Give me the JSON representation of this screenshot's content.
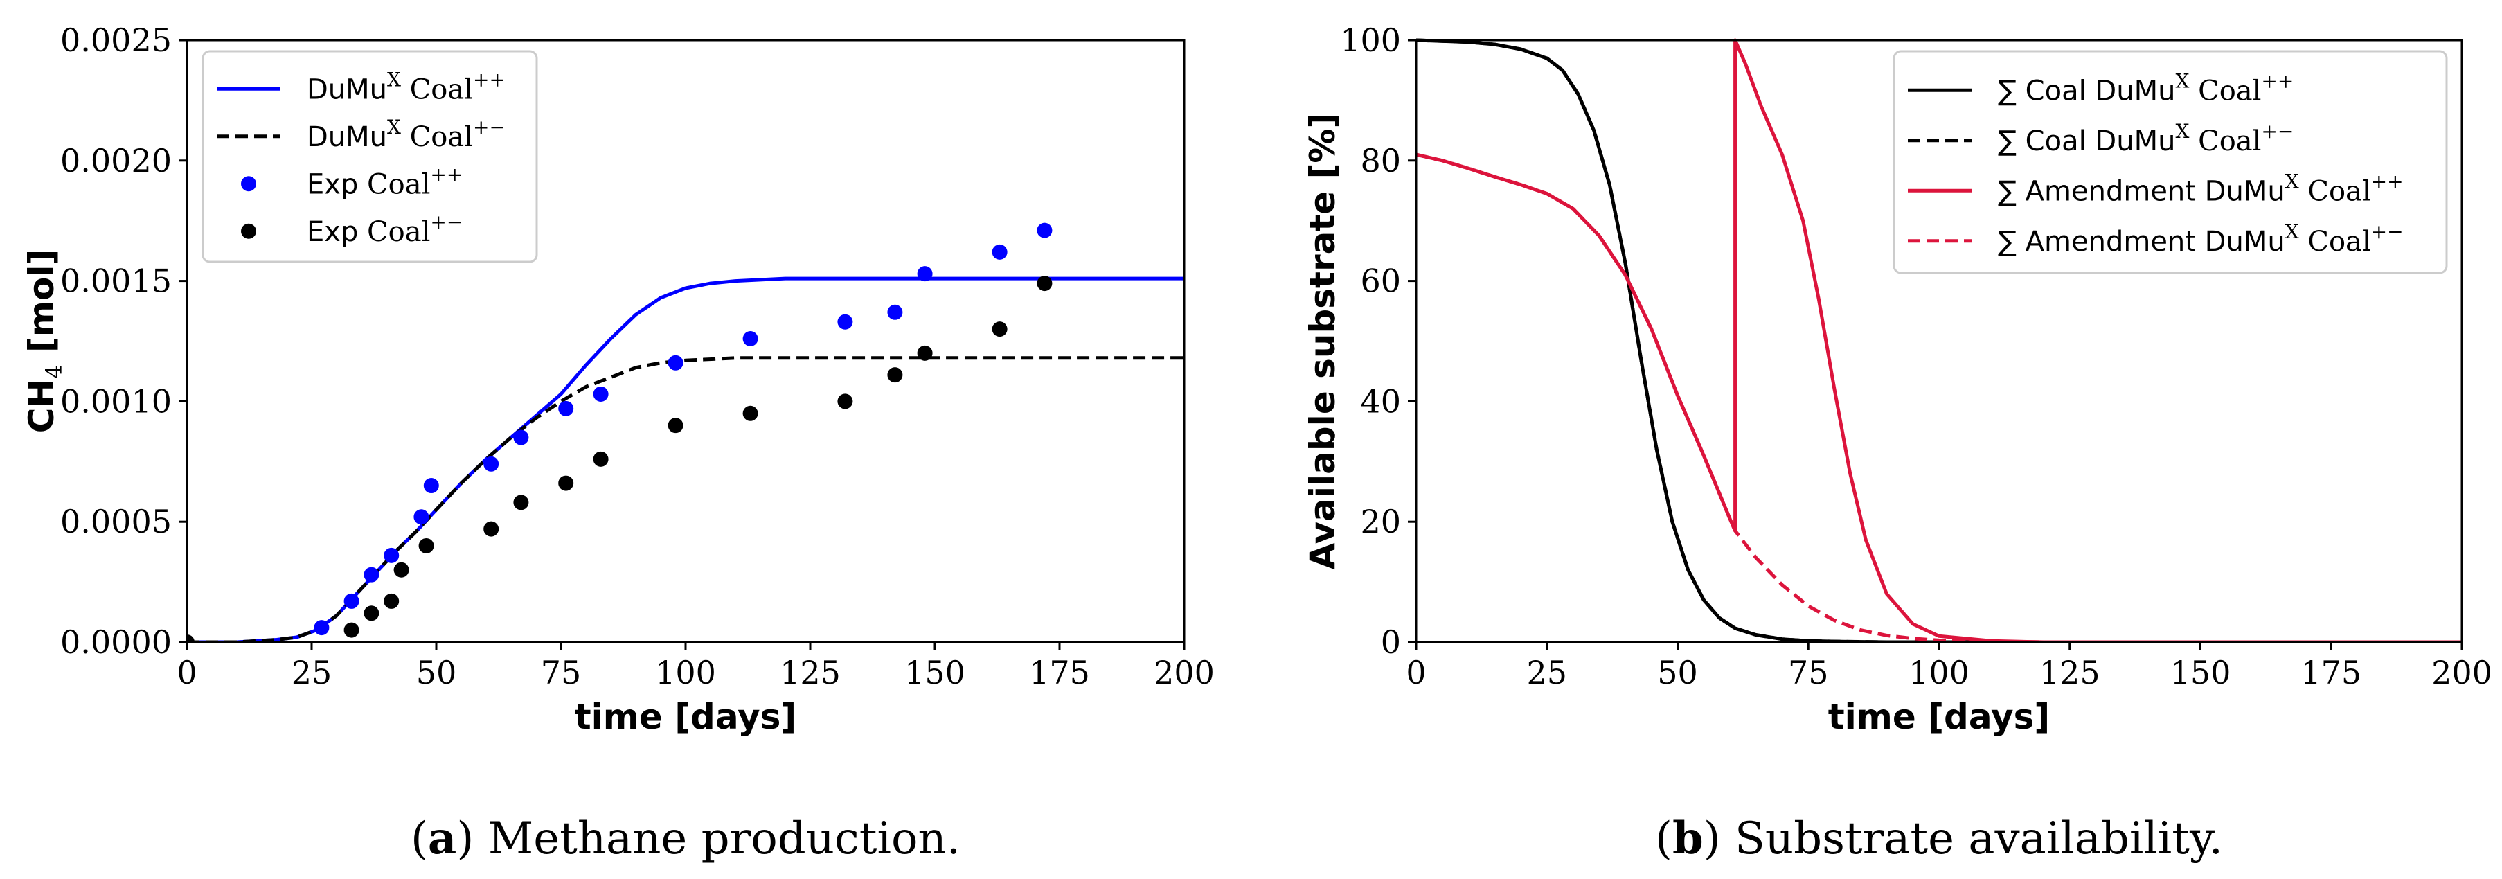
{
  "chart_data": [
    {
      "id": "a",
      "type": "line",
      "ylabel_main": "CH",
      "ylabel_sub": "4",
      "ylabel_unit": " [mol]",
      "xlabel": "time [days]",
      "xlim": [
        0,
        200
      ],
      "ylim": [
        0,
        0.0025
      ],
      "xticks": [
        0,
        25,
        50,
        75,
        100,
        125,
        150,
        175,
        200
      ],
      "xtick_labels": [
        "0",
        "25",
        "50",
        "75",
        "100",
        "125",
        "150",
        "175",
        "200"
      ],
      "yticks": [
        0,
        0.0005,
        0.001,
        0.0015,
        0.002,
        0.0025
      ],
      "ytick_labels": [
        "0.0000",
        "0.0005",
        "0.0010",
        "0.0015",
        "0.0020",
        "0.0025"
      ],
      "caption_letter": "a",
      "caption_text": " Methane production.",
      "legend_position": "top-left",
      "series": [
        {
          "name": "DuMuX Coal++",
          "label_main": "DuMu",
          "label_sup1": "X",
          "label_rest": " Coal",
          "label_sup2": "++",
          "kind": "line",
          "color": "#0000ff",
          "dash": false,
          "x": [
            0,
            10,
            18,
            22,
            26,
            30,
            34,
            38,
            42,
            46,
            50,
            55,
            60,
            65,
            70,
            75,
            80,
            85,
            90,
            95,
            100,
            105,
            110,
            120,
            130,
            150,
            175,
            200
          ],
          "y": [
            0,
            0,
            1e-05,
            2e-05,
            5e-05,
            0.00011,
            0.0002,
            0.00029,
            0.00038,
            0.00046,
            0.00055,
            0.00066,
            0.00076,
            0.00085,
            0.00094,
            0.00103,
            0.00115,
            0.00126,
            0.00136,
            0.00143,
            0.00147,
            0.00149,
            0.0015,
            0.00151,
            0.00151,
            0.00151,
            0.00151,
            0.00151
          ]
        },
        {
          "name": "DuMuX Coal+-",
          "label_main": "DuMu",
          "label_sup1": "X",
          "label_rest": " Coal",
          "label_sup2": "+−",
          "kind": "line",
          "color": "#000000",
          "dash": true,
          "x": [
            0,
            10,
            18,
            22,
            26,
            30,
            34,
            38,
            42,
            46,
            50,
            55,
            60,
            65,
            70,
            75,
            80,
            85,
            90,
            95,
            100,
            110,
            120,
            130,
            150,
            175,
            200
          ],
          "y": [
            0,
            0,
            1e-05,
            2e-05,
            5e-05,
            0.00011,
            0.0002,
            0.00029,
            0.00038,
            0.00046,
            0.00055,
            0.00066,
            0.00076,
            0.00085,
            0.00093,
            0.001,
            0.00106,
            0.0011,
            0.00114,
            0.00116,
            0.00117,
            0.00118,
            0.00118,
            0.00118,
            0.00118,
            0.00118,
            0.00118
          ]
        },
        {
          "name": "Exp Coal++",
          "label_main": "Exp",
          "label_sup1": "",
          "label_rest": " Coal",
          "label_sup2": "++",
          "kind": "scatter",
          "color": "#0000ff",
          "x": [
            27,
            33,
            37,
            41,
            47,
            49,
            61,
            67,
            76,
            83,
            98,
            113,
            132,
            142,
            148,
            163,
            172
          ],
          "y": [
            6e-05,
            0.00017,
            0.00028,
            0.00036,
            0.00052,
            0.00065,
            0.00074,
            0.00085,
            0.00097,
            0.00103,
            0.00116,
            0.00126,
            0.00133,
            0.00137,
            0.00153,
            0.00162,
            0.00171
          ]
        },
        {
          "name": "Exp Coal+-",
          "label_main": "Exp",
          "label_sup1": "",
          "label_rest": " Coal",
          "label_sup2": "+−",
          "kind": "scatter",
          "color": "#000000",
          "x": [
            0,
            33,
            37,
            41,
            43,
            48,
            61,
            67,
            76,
            83,
            98,
            113,
            132,
            142,
            148,
            163,
            172
          ],
          "y": [
            0,
            5e-05,
            0.00012,
            0.00017,
            0.0003,
            0.0004,
            0.00047,
            0.00058,
            0.00066,
            0.00076,
            0.0009,
            0.00095,
            0.001,
            0.00111,
            0.0012,
            0.0013,
            0.00149
          ]
        }
      ]
    },
    {
      "id": "b",
      "type": "line",
      "ylabel": "Available substrate [%]",
      "xlabel": "time [days]",
      "xlim": [
        0,
        200
      ],
      "ylim": [
        0,
        100
      ],
      "xticks": [
        0,
        25,
        50,
        75,
        100,
        125,
        150,
        175,
        200
      ],
      "xtick_labels": [
        "0",
        "25",
        "50",
        "75",
        "100",
        "125",
        "150",
        "175",
        "200"
      ],
      "yticks": [
        0,
        20,
        40,
        60,
        80,
        100
      ],
      "ytick_labels": [
        "0",
        "20",
        "40",
        "60",
        "80",
        "100"
      ],
      "caption_letter": "b",
      "caption_text": " Substrate availability.",
      "legend_position": "top-right",
      "series": [
        {
          "name": "∑ Coal DuMuX Coal++",
          "label_main": "∑ Coal DuMu",
          "label_sup1": "X",
          "label_rest": " Coal",
          "label_sup2": "++",
          "kind": "line",
          "color": "#000000",
          "dash": false,
          "x": [
            0,
            10,
            15,
            20,
            25,
            28,
            31,
            34,
            37,
            40,
            43,
            46,
            49,
            52,
            55,
            58,
            61,
            65,
            70,
            75,
            80,
            90,
            100,
            120,
            200
          ],
          "y": [
            100,
            99.7,
            99.3,
            98.5,
            97,
            95,
            91,
            85,
            76,
            63,
            47,
            32,
            20,
            12,
            7,
            4,
            2.3,
            1.2,
            0.5,
            0.2,
            0.1,
            0,
            0,
            0,
            0
          ]
        },
        {
          "name": "∑ Coal DuMuX Coal+-",
          "label_main": "∑ Coal DuMu",
          "label_sup1": "X",
          "label_rest": " Coal",
          "label_sup2": "+−",
          "kind": "line",
          "color": "#000000",
          "dash": true,
          "x": [
            0,
            10,
            15,
            20,
            25,
            28,
            31,
            34,
            37,
            40,
            43,
            46,
            49,
            52,
            55,
            58,
            61,
            65,
            70,
            75,
            80,
            90,
            100,
            120,
            200
          ],
          "y": [
            100,
            99.7,
            99.3,
            98.5,
            97,
            95,
            91,
            85,
            76,
            63,
            47,
            32,
            20,
            12,
            7,
            4,
            2.3,
            1.2,
            0.5,
            0.2,
            0.1,
            0,
            0,
            0,
            0
          ]
        },
        {
          "name": "∑ Amendment DuMuX Coal++",
          "label_main": "∑ Amendment DuMu",
          "label_sup1": "X",
          "label_rest": " Coal",
          "label_sup2": "++",
          "kind": "line",
          "color": "#dc143c",
          "dash": false,
          "x": [
            0,
            5,
            10,
            15,
            20,
            25,
            30,
            35,
            40,
            45,
            50,
            55,
            60,
            61,
            61,
            63,
            66,
            70,
            74,
            77,
            80,
            83,
            86,
            90,
            95,
            100,
            110,
            120,
            200
          ],
          "y": [
            81,
            80,
            78.7,
            77.3,
            76,
            74.5,
            72,
            67.5,
            61,
            52,
            41,
            31,
            20.5,
            18.5,
            100,
            96,
            89,
            81,
            70,
            57,
            42,
            28,
            17,
            8,
            3,
            1,
            0.2,
            0,
            0
          ]
        },
        {
          "name": "∑ Amendment DuMuX Coal+-",
          "label_main": "∑ Amendment DuMu",
          "label_sup1": "X",
          "label_rest": " Coal",
          "label_sup2": "+−",
          "kind": "line",
          "color": "#dc143c",
          "dash": true,
          "x": [
            0,
            5,
            10,
            15,
            20,
            25,
            30,
            35,
            40,
            45,
            50,
            55,
            60,
            61,
            65,
            70,
            75,
            80,
            85,
            90,
            95,
            100,
            110,
            120,
            200
          ],
          "y": [
            81,
            80,
            78.7,
            77.3,
            76,
            74.5,
            72,
            67.5,
            61,
            52,
            41,
            31,
            20.5,
            18.5,
            14,
            9.5,
            6,
            3.6,
            2,
            1.1,
            0.6,
            0.3,
            0.1,
            0,
            0
          ]
        }
      ]
    }
  ]
}
